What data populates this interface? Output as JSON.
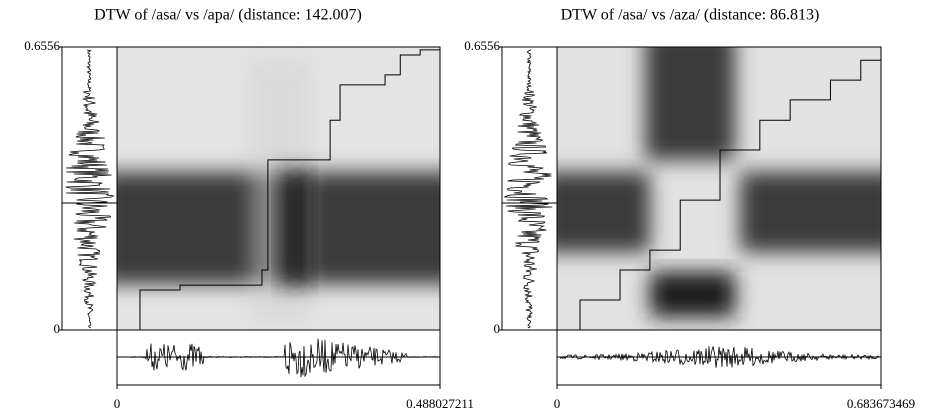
{
  "chart_data": [
    {
      "type": "dtw",
      "title": "DTW of /asa/ vs /apa/ (distance: 142.007)",
      "xlim": [
        0,
        0.488027211
      ],
      "ylim": [
        0,
        0.6556
      ],
      "xticks": [
        0,
        0.488027211
      ],
      "yticks": [
        0,
        0.6556
      ],
      "x": [
        0,
        0.0347,
        0.0952,
        0.219,
        0.228,
        0.322,
        0.337,
        0.405,
        0.428,
        0.458,
        0.488
      ],
      "values": [
        0,
        0.0927,
        0.104,
        0.139,
        0.394,
        0.486,
        0.568,
        0.591,
        0.637,
        0.649,
        0.6556
      ],
      "color": "#000000"
    },
    {
      "type": "dtw",
      "title": "DTW of /asa/ vs /aza/ (distance: 86.813)",
      "xlim": [
        0,
        0.683673469
      ],
      "ylim": [
        0,
        0.6556
      ],
      "xticks": [
        0,
        0.683673469
      ],
      "yticks": [
        0,
        0.6556
      ],
      "x": [
        0,
        0.0485,
        0.133,
        0.196,
        0.26,
        0.344,
        0.428,
        0.492,
        0.577,
        0.641,
        0.6837
      ],
      "values": [
        0,
        0.0695,
        0.139,
        0.185,
        0.301,
        0.417,
        0.486,
        0.533,
        0.579,
        0.625,
        0.6556
      ],
      "color": "#000000"
    }
  ]
}
